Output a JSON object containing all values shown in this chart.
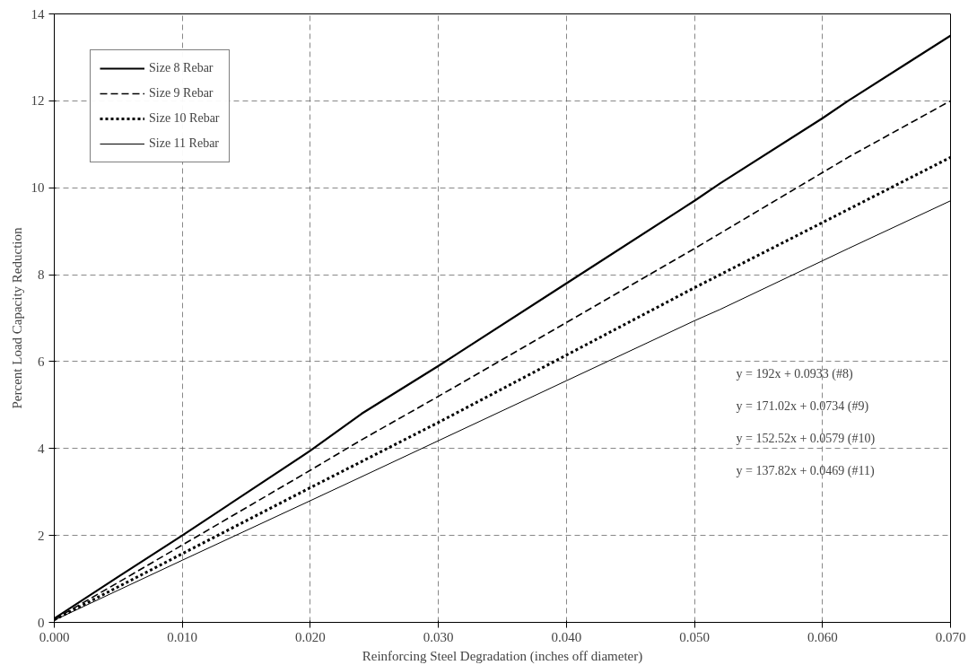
{
  "chart_data": {
    "type": "line",
    "xlabel": "Reinforcing Steel Degradation (inches off diameter)",
    "ylabel": "Percent Load Capacity Reduction",
    "x": [
      0,
      0.005,
      0.01,
      0.02,
      0.024,
      0.03,
      0.04,
      0.05,
      0.052,
      0.06,
      0.062,
      0.07
    ],
    "series": [
      {
        "name": "Size 8 Rebar",
        "color": "#000000",
        "line_style": "solid",
        "values": [
          0.09,
          1.05,
          2.0,
          3.95,
          4.8,
          5.9,
          7.8,
          9.7,
          10.1,
          11.6,
          12.0,
          13.5
        ]
      },
      {
        "name": "Size 9 Rebar",
        "color": "#000000",
        "line_style": "dashed",
        "values": [
          0.07,
          0.92,
          1.78,
          3.5,
          4.2,
          5.2,
          6.9,
          8.6,
          8.95,
          10.35,
          10.7,
          12.0
        ]
      },
      {
        "name": "Size 10 Rebar",
        "color": "#000000",
        "line_style": "dotted",
        "values": [
          0.06,
          0.82,
          1.58,
          3.1,
          3.7,
          4.6,
          6.15,
          7.7,
          8.0,
          9.2,
          9.5,
          10.7
        ]
      },
      {
        "name": "Size 11 Rebar",
        "color": "#000000",
        "line_style": "solid",
        "values": [
          0.05,
          0.74,
          1.43,
          2.8,
          3.35,
          4.18,
          5.56,
          6.94,
          7.2,
          8.32,
          8.6,
          9.7
        ]
      }
    ],
    "xlim": [
      0,
      0.07
    ],
    "ylim": [
      0,
      14
    ],
    "xticks": [
      {
        "value": 0,
        "label": "0.000"
      },
      {
        "value": 0.01,
        "label": "0.010"
      },
      {
        "value": 0.02,
        "label": "0.020"
      },
      {
        "value": 0.03,
        "label": "0.030"
      },
      {
        "value": 0.04,
        "label": "0.040"
      },
      {
        "value": 0.05,
        "label": "0.050"
      },
      {
        "value": 0.06,
        "label": "0.060"
      },
      {
        "value": 0.07,
        "label": "0.070"
      }
    ],
    "yticks": [
      0,
      2,
      4,
      6,
      8,
      10,
      12,
      14
    ],
    "grid": true,
    "legend": "top left",
    "annotations": [
      "y = 192x + 0.0933 (#8)",
      "y = 171.02x + 0.0734 (#9)",
      "y = 152.52x + 0.0579 (#10)",
      "y = 137.82x + 0.0469 (#11)"
    ]
  }
}
